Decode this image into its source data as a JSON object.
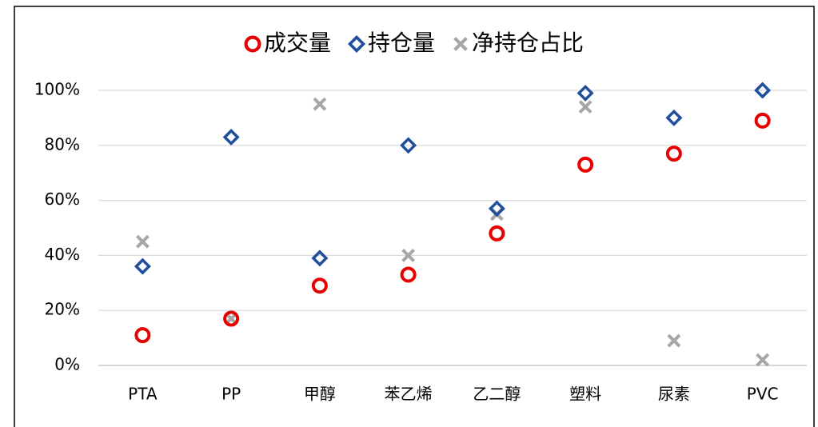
{
  "chart_data": {
    "type": "scatter",
    "categories": [
      "PTA",
      "PP",
      "甲醇",
      "苯乙烯",
      "乙二醇",
      "塑料",
      "尿素",
      "PVC"
    ],
    "series": [
      {
        "name": "成交量",
        "color": "#e60000",
        "marker": "circle",
        "values": [
          11,
          17,
          29,
          33,
          48,
          73,
          77,
          89
        ]
      },
      {
        "name": "持仓量",
        "color": "#1f4e9c",
        "marker": "diamond",
        "values": [
          36,
          83,
          39,
          80,
          57,
          99,
          90,
          100
        ]
      },
      {
        "name": "净持仓占比",
        "color": "#a6a6a6",
        "marker": "x",
        "values": [
          45,
          17,
          95,
          40,
          55,
          94,
          9,
          2
        ]
      }
    ],
    "ylim": [
      0,
      100
    ],
    "yticks": [
      {
        "value": 0,
        "label": "0%"
      },
      {
        "value": 20,
        "label": "20%"
      },
      {
        "value": 40,
        "label": "40%"
      },
      {
        "value": 60,
        "label": "60%"
      },
      {
        "value": 80,
        "label": "80%"
      },
      {
        "value": 100,
        "label": "100%"
      }
    ],
    "grid": true,
    "legend": "top"
  }
}
